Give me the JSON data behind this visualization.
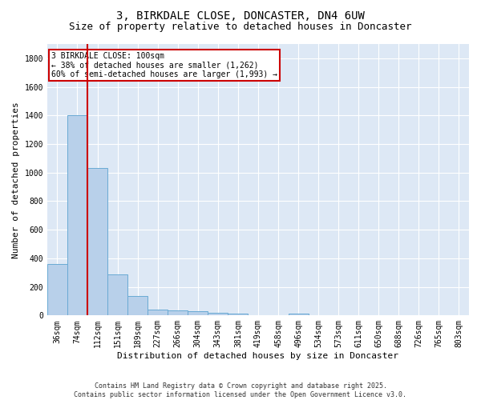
{
  "title": "3, BIRKDALE CLOSE, DONCASTER, DN4 6UW",
  "subtitle": "Size of property relative to detached houses in Doncaster",
  "xlabel": "Distribution of detached houses by size in Doncaster",
  "ylabel": "Number of detached properties",
  "bar_color": "#b8d0ea",
  "bar_edge_color": "#6aaad4",
  "background_color": "#dde8f5",
  "categories": [
    "36sqm",
    "74sqm",
    "112sqm",
    "151sqm",
    "189sqm",
    "227sqm",
    "266sqm",
    "304sqm",
    "343sqm",
    "381sqm",
    "419sqm",
    "458sqm",
    "496sqm",
    "534sqm",
    "573sqm",
    "611sqm",
    "650sqm",
    "688sqm",
    "726sqm",
    "765sqm",
    "803sqm"
  ],
  "values": [
    360,
    1400,
    1030,
    290,
    137,
    40,
    33,
    28,
    17,
    13,
    0,
    0,
    15,
    0,
    0,
    0,
    0,
    0,
    0,
    0,
    0
  ],
  "ylim": [
    0,
    1900
  ],
  "yticks": [
    0,
    200,
    400,
    600,
    800,
    1000,
    1200,
    1400,
    1600,
    1800
  ],
  "vline_bar_index": 1,
  "vline_color": "#cc0000",
  "annotation_line1": "3 BIRKDALE CLOSE: 100sqm",
  "annotation_line2": "← 38% of detached houses are smaller (1,262)",
  "annotation_line3": "60% of semi-detached houses are larger (1,993) →",
  "annotation_box_color": "#ffffff",
  "annotation_box_edge_color": "#cc0000",
  "footer_line1": "Contains HM Land Registry data © Crown copyright and database right 2025.",
  "footer_line2": "Contains public sector information licensed under the Open Government Licence v3.0.",
  "title_fontsize": 10,
  "subtitle_fontsize": 9,
  "axis_label_fontsize": 8,
  "tick_fontsize": 7,
  "annotation_fontsize": 7,
  "footer_fontsize": 6
}
